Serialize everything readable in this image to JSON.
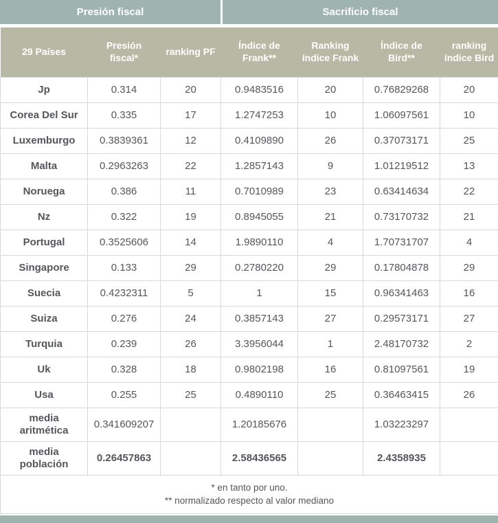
{
  "colors": {
    "band_teal": "#9fb3af",
    "header_olive": "#b7b9a4",
    "body_text": "#54565b",
    "border": "#d7d7d7"
  },
  "top_headers": [
    {
      "label": "Presión fiscal"
    },
    {
      "label": "Sacrificio fiscal"
    }
  ],
  "chart_data": {
    "type": "table",
    "title": "Presión fiscal / Sacrificio fiscal",
    "columns": [
      "29 Países",
      "Presión fiscal*",
      "ranking PF",
      "Índice de Frank**",
      "Ranking índice Frank",
      "Índice de Bird**",
      "ranking índice Bird"
    ],
    "rows": [
      [
        "Jp",
        "0.314",
        "20",
        "0.9483516",
        "20",
        "0.76829268",
        "20"
      ],
      [
        "Corea Del Sur",
        "0.335",
        "17",
        "1.2747253",
        "10",
        "1.06097561",
        "10"
      ],
      [
        "Luxemburgo",
        "0.3839361",
        "12",
        "0.4109890",
        "26",
        "0.37073171",
        "25"
      ],
      [
        "Malta",
        "0.2963263",
        "22",
        "1.2857143",
        "9",
        "1.01219512",
        "13"
      ],
      [
        "Noruega",
        "0.386",
        "11",
        "0.7010989",
        "23",
        "0.63414634",
        "22"
      ],
      [
        "Nz",
        "0.322",
        "19",
        "0.8945055",
        "21",
        "0.73170732",
        "21"
      ],
      [
        "Portugal",
        "0.3525606",
        "14",
        "1.9890110",
        "4",
        "1.70731707",
        "4"
      ],
      [
        "Singapore",
        "0.133",
        "29",
        "0.2780220",
        "29",
        "0.17804878",
        "29"
      ],
      [
        "Suecia",
        "0.4232311",
        "5",
        "1",
        "15",
        "0.96341463",
        "16"
      ],
      [
        "Suiza",
        "0.276",
        "24",
        "0.3857143",
        "27",
        "0.29573171",
        "27"
      ],
      [
        "Turquia",
        "0.239",
        "26",
        "3.3956044",
        "1",
        "2.48170732",
        "2"
      ],
      [
        "Uk",
        "0.328",
        "18",
        "0.9802198",
        "16",
        "0.81097561",
        "19"
      ],
      [
        "Usa",
        "0.255",
        "25",
        "0.4890110",
        "25",
        "0.36463415",
        "26"
      ]
    ],
    "summary_rows": [
      {
        "label": "media aritmética",
        "values": [
          "0.341609207",
          "",
          "1.20185676",
          "",
          "1.03223297",
          ""
        ],
        "bold": false
      },
      {
        "label": "media población",
        "values": [
          "0.26457863",
          "",
          "2.58436565",
          "",
          "2.4358935",
          ""
        ],
        "bold": true
      }
    ],
    "footnotes": [
      "* en tanto por uno.",
      "** normalizado respecto al valor mediano"
    ]
  }
}
